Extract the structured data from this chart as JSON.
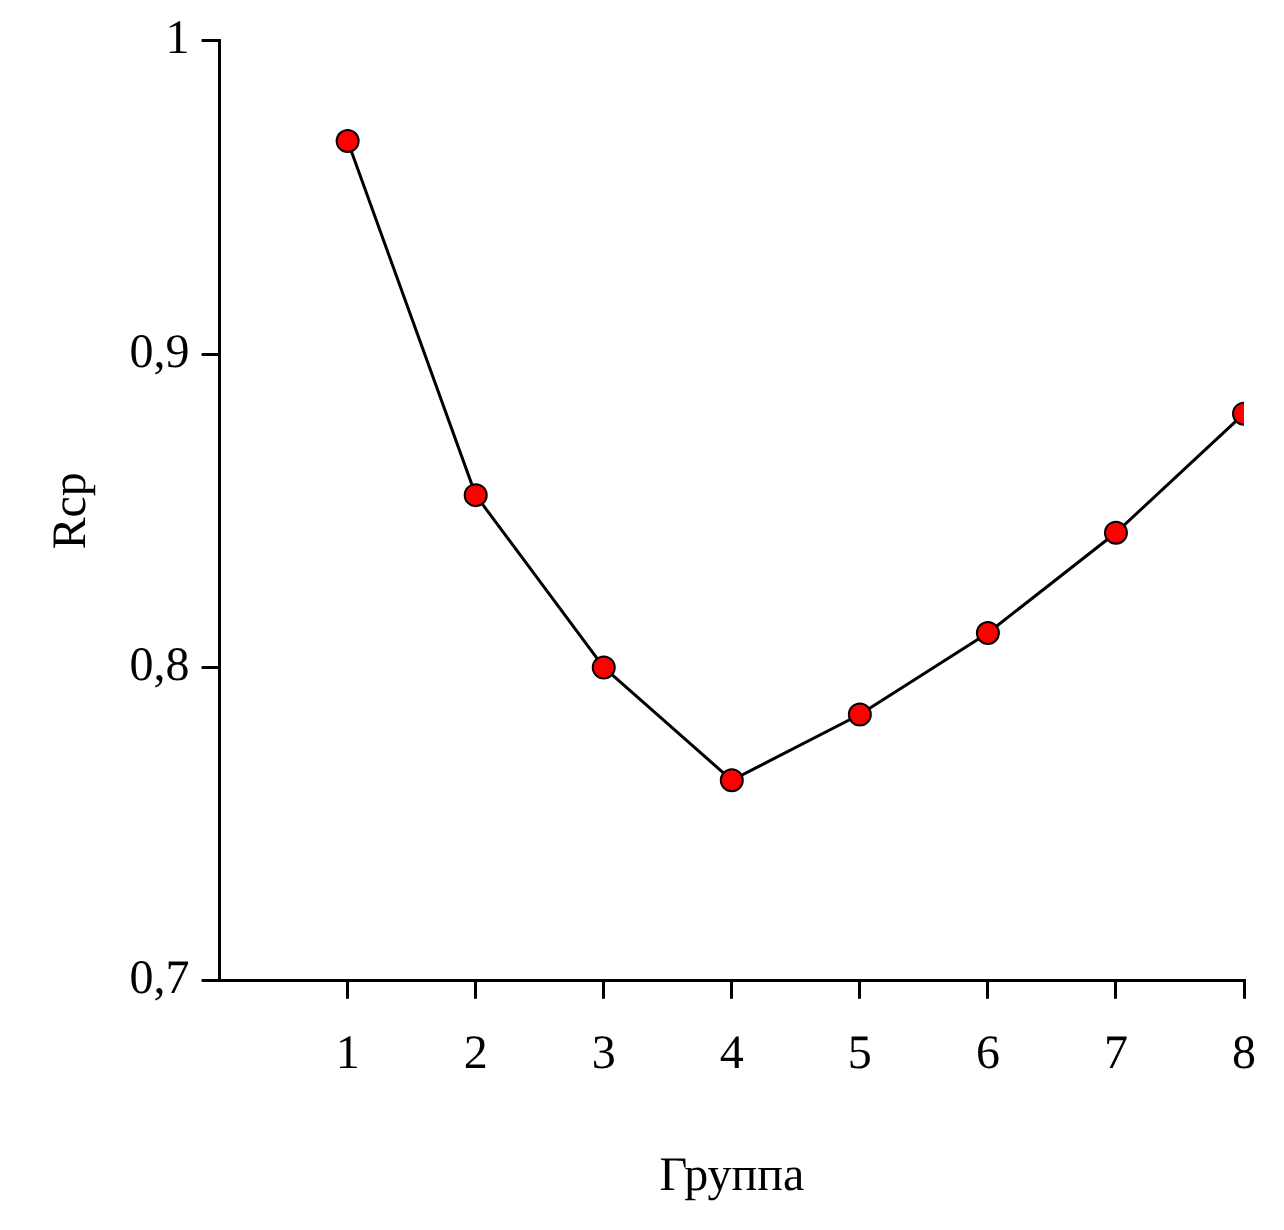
{
  "chart_data": {
    "type": "line",
    "xlabel": "Группа",
    "ylabel": "Rcp",
    "x": [
      1,
      2,
      3,
      4,
      5,
      6,
      7,
      8
    ],
    "series": [
      {
        "color": "#000000",
        "colors": [
          "#ff0000",
          "#ff0000",
          "#ff0000",
          "#ff0000",
          "#ff0000",
          "#ff0000",
          "#ff0000",
          "#ff0000"
        ],
        "values": [
          0.968,
          0.855,
          0.8,
          0.764,
          0.785,
          0.811,
          0.843,
          0.881
        ]
      }
    ],
    "xlim": [
      0,
      8
    ],
    "xticks": [
      1,
      2,
      3,
      4,
      5,
      6,
      7,
      8
    ],
    "ylim": [
      0.7,
      1
    ],
    "yticks": [
      {
        "value": 0.7,
        "label": "0,7"
      },
      {
        "value": 0.8,
        "label": "0,8"
      },
      {
        "value": 0.9,
        "label": "0,9"
      },
      {
        "value": 1,
        "label": "1"
      }
    ],
    "grid": false,
    "legend": false,
    "marker": "circle",
    "line_style": "solid"
  }
}
